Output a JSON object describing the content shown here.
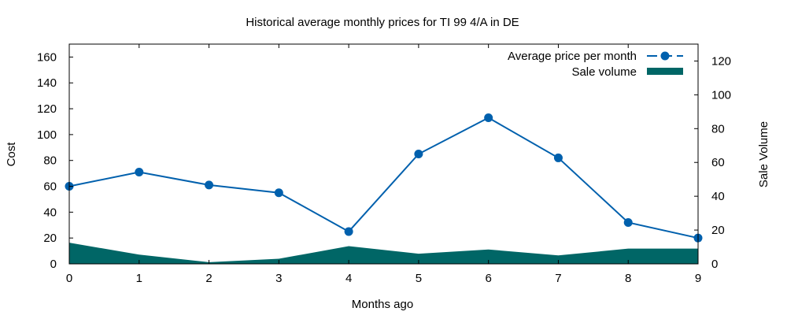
{
  "chart_data": {
    "type": "line",
    "title": "Historical average monthly prices for TI 99 4/A in DE",
    "xlabel": "Months ago",
    "ylabel": "Cost",
    "y2label": "Sale Volume",
    "x": [
      0,
      1,
      2,
      3,
      4,
      5,
      6,
      7,
      8,
      9
    ],
    "xlim": [
      0,
      9
    ],
    "ylim": [
      0,
      170
    ],
    "y2lim": [
      0,
      130
    ],
    "xticks": [
      "0",
      "1",
      "2",
      "3",
      "4",
      "5",
      "6",
      "7",
      "8",
      "9"
    ],
    "yticks": [
      "0",
      "20",
      "40",
      "60",
      "80",
      "100",
      "120",
      "140",
      "160"
    ],
    "y2ticks": [
      "0",
      "20",
      "40",
      "60",
      "80",
      "100",
      "120"
    ],
    "grid": false,
    "legend_position": "top-right",
    "series": [
      {
        "name": "Average price per month",
        "type": "line",
        "axis": "y",
        "color": "#0060ad",
        "values": [
          60,
          71,
          61,
          55,
          25,
          85,
          113,
          82,
          32,
          20
        ]
      },
      {
        "name": "Sale volume",
        "type": "area",
        "axis": "y2",
        "color": "#006666",
        "values": [
          12.5,
          5.5,
          1,
          3,
          10.5,
          6,
          8.5,
          5,
          9,
          9
        ]
      }
    ]
  }
}
